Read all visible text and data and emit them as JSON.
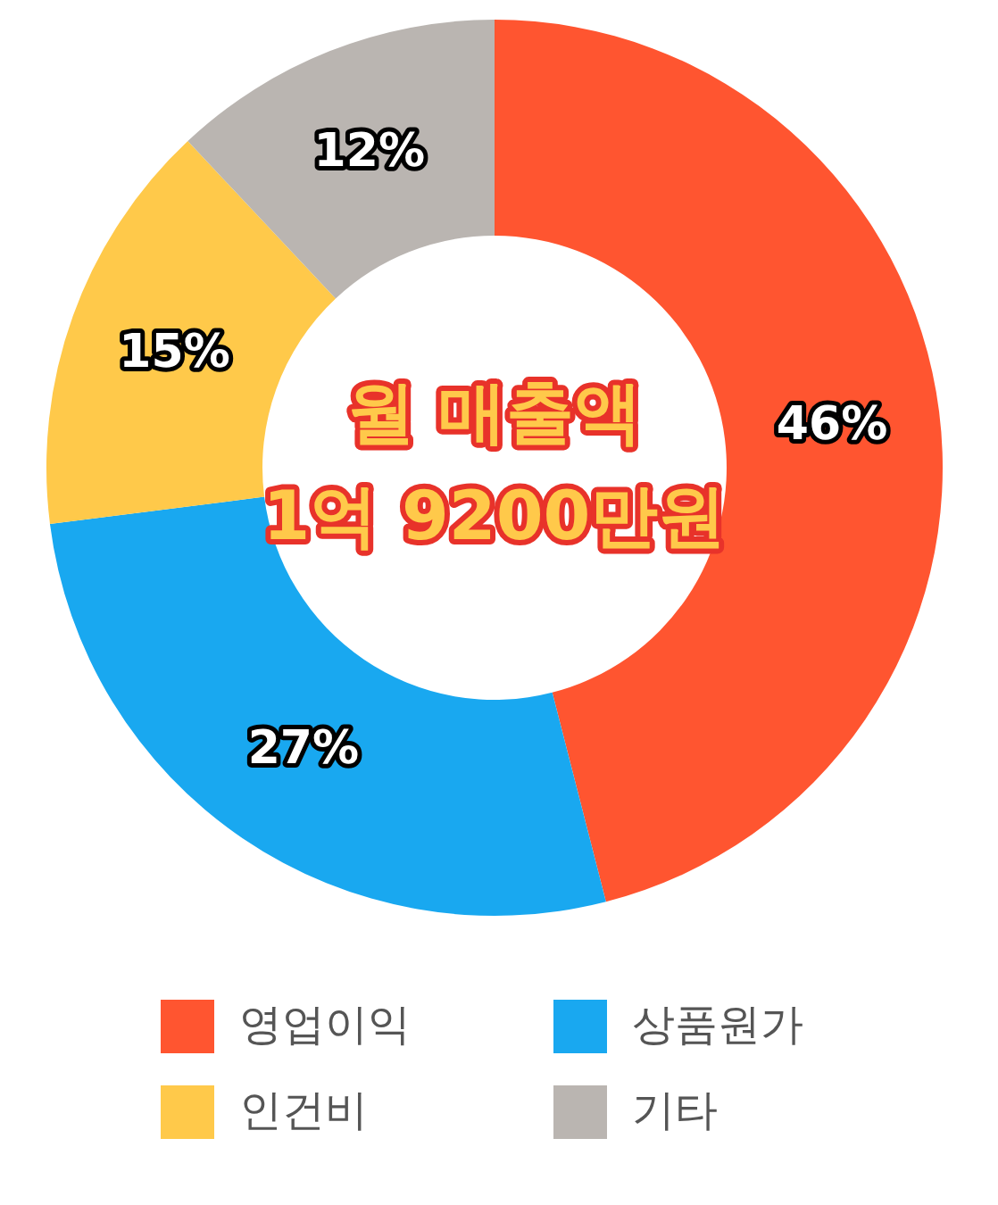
{
  "chart_data": {
    "type": "donut",
    "title": [
      "월 매출액",
      "1억 9200만원"
    ],
    "categories": [
      "영업이익",
      "상품원가",
      "인건비",
      "기타"
    ],
    "values": [
      46,
      27,
      15,
      12
    ],
    "colors": [
      "#ff5530",
      "#19a8f0",
      "#ffc94a",
      "#bab5b1"
    ],
    "value_labels": [
      "46%",
      "27%",
      "15%",
      "12%"
    ],
    "legend": "bottom"
  }
}
